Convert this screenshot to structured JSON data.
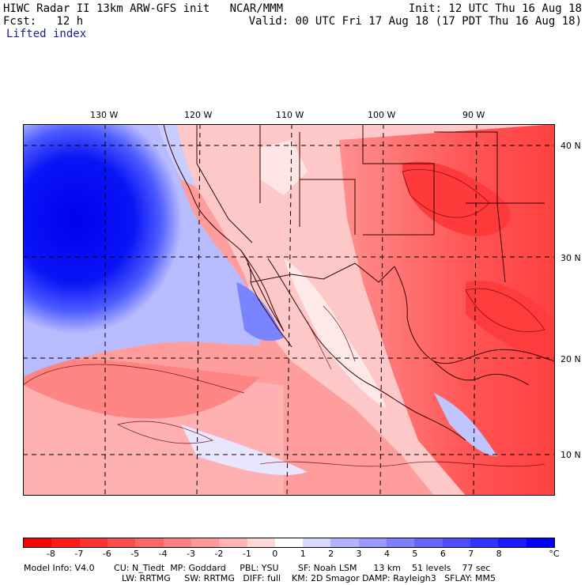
{
  "header": {
    "line1_left": "HIWC Radar II 13km ARW-GFS init   NCAR/MMM",
    "line1_right": "Init: 12 UTC Thu 16 Aug 18",
    "line2_left": "Fcst:   12 h",
    "line2_right": "Valid: 00 UTC Fri 17 Aug 18 (17 PDT Thu 16 Aug 18)",
    "field": "Lifted index"
  },
  "map": {
    "lon_labels": [
      "130 W",
      "120 W",
      "110 W",
      "100 W",
      "90 W"
    ],
    "lat_labels": [
      "40 N",
      "30 N",
      "20 N",
      "10 N"
    ]
  },
  "colorbar": {
    "unit": "°C",
    "tick_labels": [
      "-8",
      "-7",
      "-6",
      "-5",
      "-4",
      "-3",
      "-2",
      "-1",
      "0",
      "1",
      "2",
      "3",
      "4",
      "5",
      "6",
      "7",
      "8"
    ],
    "colors": [
      "#ff0000",
      "#ff1a1a",
      "#ff3333",
      "#ff4d4d",
      "#ff6666",
      "#ff8080",
      "#ff9999",
      "#ffb3b3",
      "#ffd9d9",
      "#ffffff",
      "#d9d9ff",
      "#b3b3ff",
      "#9999ff",
      "#8080ff",
      "#6666ff",
      "#4d4dff",
      "#3333ff",
      "#1a1aff",
      "#0000ff"
    ]
  },
  "footer": {
    "line1": "Model Info: V4.0       CU: N_Tiedt  MP: Goddard     PBL: YSU       SF: Noah LSM      13 km    51 levels    77 sec",
    "line2": "LW: RRTMG     SW: RRTMG   DIFF: full    KM: 2D Smagor DAMP: Rayleigh3   SFLAY: MM5"
  }
}
